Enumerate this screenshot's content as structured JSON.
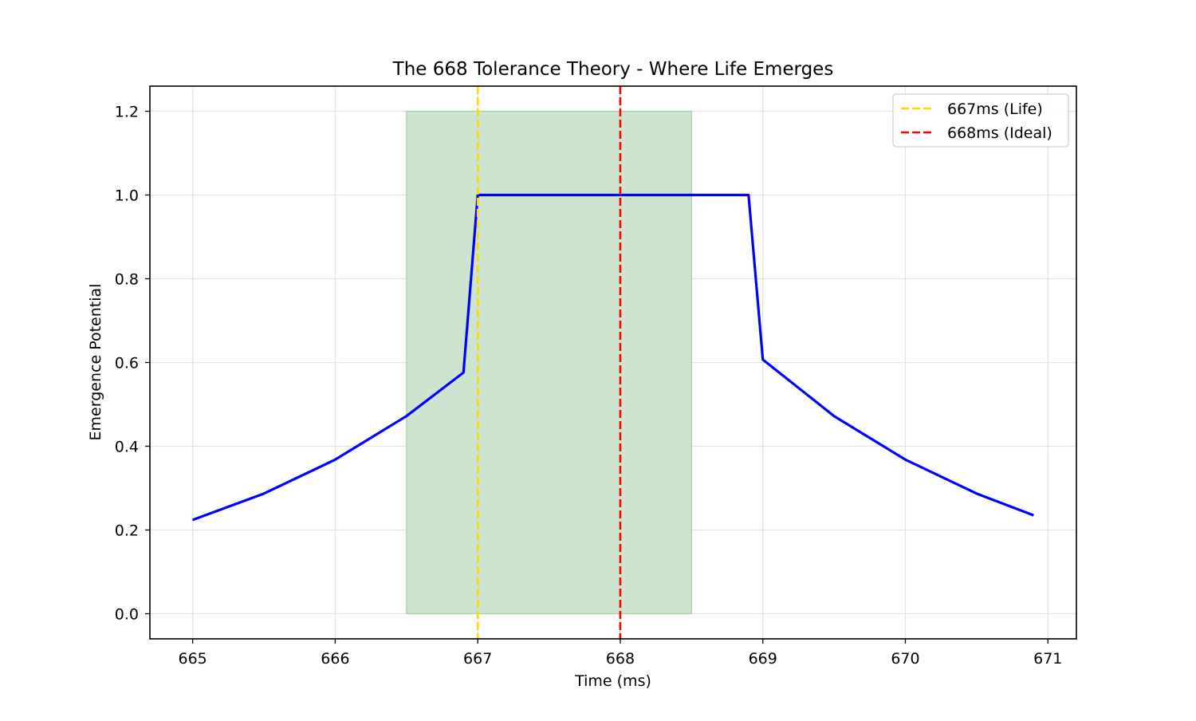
{
  "chart_data": {
    "type": "line",
    "title": "The 668 Tolerance Theory - Where Life Emerges",
    "xlabel": "Time (ms)",
    "ylabel": "Emergence Potential",
    "xlim": [
      664.7,
      671.2
    ],
    "ylim": [
      -0.06,
      1.26
    ],
    "x_ticks": [
      665,
      666,
      667,
      668,
      669,
      670,
      671
    ],
    "x_tick_labels": [
      "665",
      "666",
      "667",
      "668",
      "669",
      "670",
      "671"
    ],
    "y_ticks": [
      0.0,
      0.2,
      0.4,
      0.6,
      0.8,
      1.0,
      1.2
    ],
    "y_tick_labels": [
      "0.0",
      "0.2",
      "0.4",
      "0.6",
      "0.8",
      "1.0",
      "1.2"
    ],
    "grid": true,
    "legend_position": "top-right",
    "shaded_region": {
      "x": [
        666.5,
        668.5
      ],
      "y": [
        0,
        1.2
      ],
      "color": "#cde5ce",
      "edge_color": "#a8d1a8"
    },
    "vlines": [
      {
        "label": "667ms (Life)",
        "x": 667,
        "color": "#ffd700",
        "style": "dashed"
      },
      {
        "label": "668ms (Ideal)",
        "x": 668,
        "color": "#ff0000",
        "style": "dashed"
      }
    ],
    "series": [
      {
        "color": "#0000ff",
        "x": [
          665.0,
          665.5,
          666.0,
          666.5,
          666.9,
          667.0,
          667.5,
          668.0,
          668.5,
          668.9,
          669.0,
          669.5,
          670.0,
          670.5,
          670.9
        ],
        "y": [
          0.224,
          0.287,
          0.368,
          0.472,
          0.576,
          1.0,
          1.0,
          1.0,
          1.0,
          1.0,
          0.607,
          0.472,
          0.368,
          0.287,
          0.235
        ]
      }
    ]
  }
}
